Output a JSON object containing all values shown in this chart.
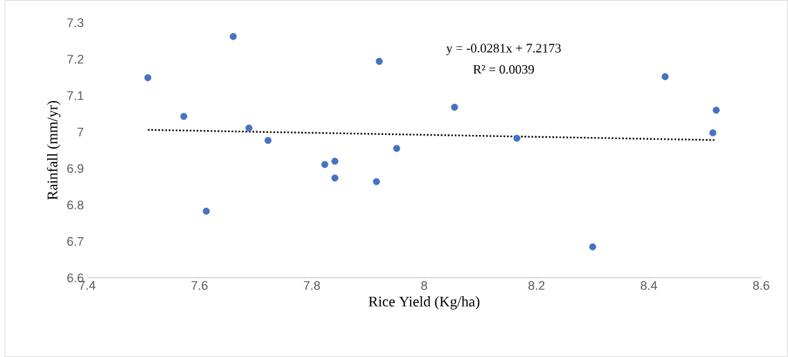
{
  "chart_data": {
    "type": "scatter",
    "xlabel": "Rice Yield (Kg/ha)",
    "ylabel": "Rainfall (mm/yr)",
    "xlim": [
      7.4,
      8.6
    ],
    "xticks": [
      7.4,
      7.6,
      7.8,
      8,
      8.2,
      8.4,
      8.6
    ],
    "ylim": [
      6.6,
      7.3
    ],
    "yticks": [
      6.6,
      6.7,
      6.8,
      6.9,
      7,
      7.1,
      7.2,
      7.3
    ],
    "marker": "circle",
    "annotations": [
      "y = -0.0281x + 7.2173",
      "R² = 0.0039"
    ],
    "series": [
      {
        "color": "#4472c4",
        "x": [
          7.508,
          7.66,
          7.572,
          7.688,
          7.722,
          7.612,
          7.823,
          7.841,
          7.841,
          7.915,
          7.92,
          7.951,
          8.054,
          8.165,
          8.3,
          8.429,
          8.514,
          8.52
        ],
        "values": [
          7.149,
          7.262,
          7.043,
          7.011,
          6.977,
          6.783,
          6.911,
          6.92,
          6.874,
          6.864,
          7.194,
          6.955,
          7.068,
          6.983,
          6.685,
          7.152,
          6.998,
          7.06
        ]
      },
      {
        "type": "line",
        "color": "#000000",
        "line_style": "dotted",
        "marker": "none",
        "x": [
          7.508,
          8.52
        ],
        "values": [
          7.006,
          6.978
        ]
      }
    ]
  }
}
